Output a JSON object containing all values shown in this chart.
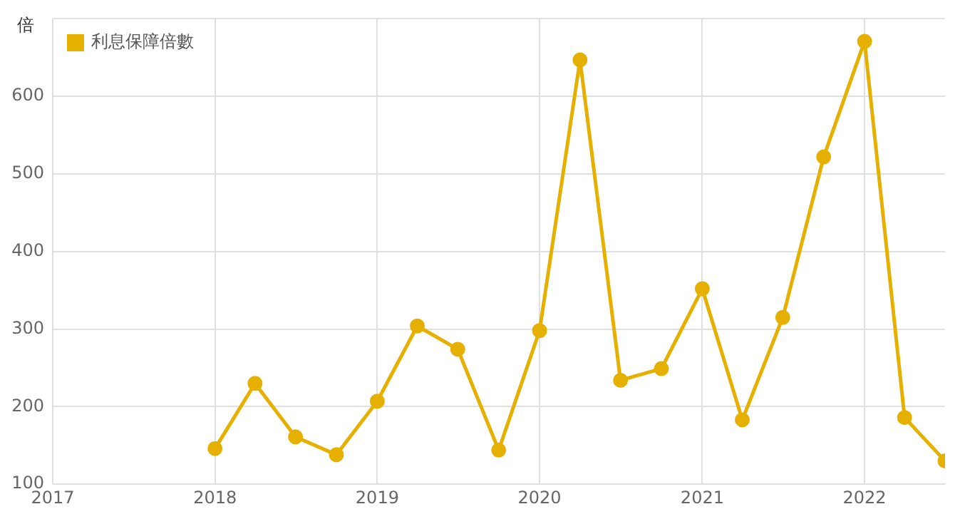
{
  "chart_data": {
    "type": "line",
    "ylabel": "倍",
    "x": [
      "2018-01",
      "2018-04",
      "2018-07",
      "2018-10",
      "2019-01",
      "2019-04",
      "2019-07",
      "2019-10",
      "2020-01",
      "2020-04",
      "2020-07",
      "2020-10",
      "2021-01",
      "2021-04",
      "2021-07",
      "2021-10",
      "2022-01",
      "2022-04",
      "2022-07"
    ],
    "series": [
      {
        "name": "利息保障倍數",
        "color": "#e6b000",
        "values": [
          146,
          230,
          161,
          138,
          207,
          304,
          274,
          144,
          298,
          647,
          234,
          249,
          352,
          183,
          315,
          522,
          671,
          186,
          130
        ]
      }
    ],
    "xlim": [
      "2017-01",
      "2022-07"
    ],
    "xticks": [
      {
        "value": "2017-01",
        "label": "2017"
      },
      {
        "value": "2018-01",
        "label": "2018"
      },
      {
        "value": "2019-01",
        "label": "2019"
      },
      {
        "value": "2020-01",
        "label": "2020"
      },
      {
        "value": "2021-01",
        "label": "2021"
      },
      {
        "value": "2022-01",
        "label": "2022"
      }
    ],
    "ylim": [
      100,
      700
    ],
    "yticks": [
      100,
      200,
      300,
      400,
      500,
      600,
      {
        "value": 700,
        "label": null
      }
    ],
    "grid": true,
    "legend": "top left",
    "marker": "circle",
    "line_style": "solid"
  }
}
